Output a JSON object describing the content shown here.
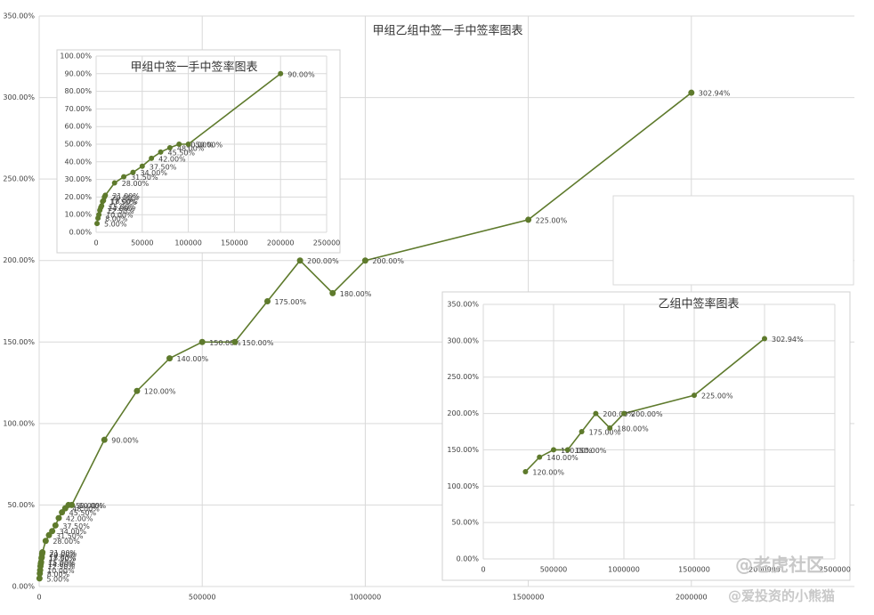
{
  "chart_data": [
    {
      "type": "line",
      "title": "甲组乙组中签一手中签率图表",
      "color": "#5e7a2c",
      "grid": true,
      "x": [
        1000,
        2000,
        3000,
        4000,
        5000,
        6000,
        7000,
        8000,
        9000,
        10000,
        20000,
        30000,
        40000,
        50000,
        60000,
        70000,
        80000,
        90000,
        100000,
        200000,
        300000,
        400000,
        500000,
        600000,
        700000,
        800000,
        900000,
        1000000,
        1500000,
        2000000
      ],
      "values": [
        5,
        8,
        10,
        12.5,
        14,
        15,
        17.5,
        18,
        20,
        21,
        28,
        31.5,
        34,
        37.5,
        42,
        45.5,
        48,
        50,
        50,
        90,
        120,
        140,
        150,
        150,
        175,
        200,
        180,
        200,
        225,
        302.94
      ],
      "value_labels": [
        "5.00%",
        "8.00%",
        "10.00%",
        "12.50%",
        "14.00%",
        "15.00%",
        "17.50%",
        "18.00%",
        "20.00%",
        "21.00%",
        "28.00%",
        "31.50%",
        "34.00%",
        "37.50%",
        "42.00%",
        "45.50%",
        "48.00%",
        "50.00%",
        "50.00%",
        "90.00%",
        "120.00%",
        "140.00%",
        "150.00%",
        "150.00%",
        "175.00%",
        "200.00%",
        "180.00%",
        "200.00%",
        "225.00%",
        "302.94%"
      ],
      "xlim": [
        0,
        2500000
      ],
      "xticks": [
        0,
        500000,
        1000000,
        1500000,
        2000000
      ],
      "ylim": [
        0,
        350
      ],
      "yticks": [
        {
          "value": 0,
          "label": "0.00%"
        },
        {
          "value": 50,
          "label": "50.00%"
        },
        {
          "value": 100,
          "label": "100.00%"
        },
        {
          "value": 150,
          "label": "150.00%"
        },
        {
          "value": 200,
          "label": "200.00%"
        },
        {
          "value": 250,
          "label": "250.00%"
        },
        {
          "value": 300,
          "label": "300.00%"
        },
        {
          "value": 350,
          "label": "350.00%"
        }
      ]
    },
    {
      "type": "line",
      "title": "甲组中签一手中签率图表",
      "color": "#5e7a2c",
      "grid": true,
      "x": [
        1000,
        2000,
        3000,
        4000,
        5000,
        6000,
        7000,
        8000,
        9000,
        10000,
        20000,
        30000,
        40000,
        50000,
        60000,
        70000,
        80000,
        90000,
        100000,
        200000
      ],
      "values": [
        5,
        8,
        10,
        12.5,
        14,
        15,
        17.5,
        18,
        20,
        21,
        28,
        31.5,
        34,
        37.5,
        42,
        45.5,
        48,
        50,
        50,
        90
      ],
      "value_labels": [
        "5.00%",
        "8.00%",
        "10.00%",
        "12.50%",
        "14.00%",
        "15.00%",
        "17.50%",
        "18.00%",
        "20.00%",
        "21.00%",
        "28.00%",
        "31.50%",
        "34.00%",
        "37.50%",
        "42.00%",
        "45.50%",
        "48.00%",
        "50.00%",
        "50.00%",
        "90.00%"
      ],
      "xlim": [
        0,
        250000
      ],
      "xticks": [
        0,
        50000,
        100000,
        150000,
        200000,
        250000
      ],
      "ylim": [
        0,
        100
      ],
      "yticks": [
        {
          "value": 0,
          "label": "0.00%"
        },
        {
          "value": 10,
          "label": "10.00%"
        },
        {
          "value": 20,
          "label": "20.00%"
        },
        {
          "value": 30,
          "label": "30.00%"
        },
        {
          "value": 40,
          "label": "40.00%"
        },
        {
          "value": 50,
          "label": "50.00%"
        },
        {
          "value": 60,
          "label": "60.00%"
        },
        {
          "value": 70,
          "label": "70.00%"
        },
        {
          "value": 80,
          "label": "80.00%"
        },
        {
          "value": 90,
          "label": "90.00%"
        },
        {
          "value": 100,
          "label": "100.00%"
        }
      ]
    },
    {
      "type": "line",
      "title": "乙组中签率图表",
      "color": "#5e7a2c",
      "grid": true,
      "x": [
        300000,
        400000,
        500000,
        600000,
        700000,
        800000,
        900000,
        1000000,
        1500000,
        2000000
      ],
      "values": [
        120,
        140,
        150,
        150,
        175,
        200,
        180,
        200,
        225,
        302.94
      ],
      "value_labels": [
        "120.00%",
        "140.00%",
        "150.00%",
        "150.00%",
        "175.00%",
        "200.00%",
        "180.00%",
        "200.00%",
        "225.00%",
        "302.94%"
      ],
      "xlim": [
        0,
        2500000
      ],
      "xticks": [
        0,
        500000,
        1000000,
        1500000,
        2000000,
        2500000
      ],
      "ylim": [
        0,
        350
      ],
      "yticks": [
        {
          "value": 0,
          "label": "0.00%"
        },
        {
          "value": 50,
          "label": "50.00%"
        },
        {
          "value": 100,
          "label": "100.00%"
        },
        {
          "value": 150,
          "label": "150.00%"
        },
        {
          "value": 200,
          "label": "200.00%"
        },
        {
          "value": 250,
          "label": "250.00%"
        },
        {
          "value": 300,
          "label": "300.00%"
        },
        {
          "value": 350,
          "label": "350.00%"
        }
      ]
    }
  ],
  "watermarks": [
    "@老虎社区",
    "@爱投资的小熊猫"
  ]
}
